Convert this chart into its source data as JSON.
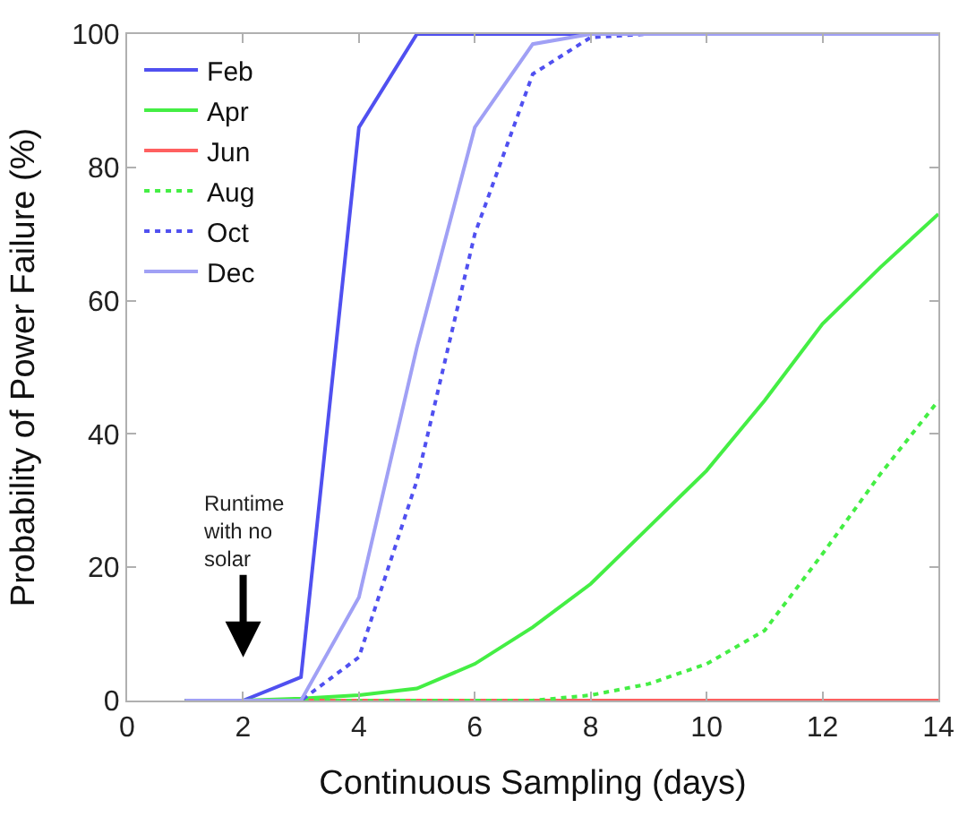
{
  "chart_data": {
    "type": "line",
    "xlabel": "Continuous Sampling (days)",
    "ylabel": "Probability of Power Failure (%)",
    "x": [
      1,
      2,
      3,
      4,
      5,
      6,
      7,
      8,
      9,
      10,
      11,
      12,
      13,
      14
    ],
    "xlim": [
      0,
      14
    ],
    "xticks": [
      0,
      2,
      4,
      6,
      8,
      10,
      12,
      14
    ],
    "ylim": [
      0,
      100
    ],
    "yticks": [
      0,
      20,
      40,
      60,
      80,
      100
    ],
    "legend": "top left",
    "marker": "none",
    "annotations": [
      "Runtime\nwith no\nsolar"
    ],
    "series": [
      {
        "name": "Feb",
        "color": "#5050f0",
        "line_style": "solid",
        "values": [
          0,
          0,
          3.5,
          86,
          100,
          100,
          100,
          100,
          100,
          100,
          100,
          100,
          100,
          100
        ]
      },
      {
        "name": "Apr",
        "color": "#44ee44",
        "line_style": "solid",
        "values": [
          0,
          0,
          0.3,
          0.8,
          1.8,
          5.5,
          11,
          17.5,
          26,
          34.5,
          45,
          56.5,
          65,
          73
        ]
      },
      {
        "name": "Jun",
        "color": "#ff6060",
        "line_style": "solid",
        "values": [
          0,
          0,
          0,
          0,
          0,
          0,
          0,
          0,
          0,
          0,
          0,
          0,
          0,
          0
        ]
      },
      {
        "name": "Aug",
        "color": "#44ee44",
        "line_style": "dotted",
        "values": [
          0,
          0,
          0,
          0,
          0,
          0,
          0,
          0.8,
          2.5,
          5.5,
          10.5,
          22,
          34,
          45
        ]
      },
      {
        "name": "Oct",
        "color": "#5050f0",
        "line_style": "dotted",
        "values": [
          0,
          0,
          0,
          6.5,
          33,
          70,
          94,
          99.5,
          100,
          100,
          100,
          100,
          100,
          100
        ]
      },
      {
        "name": "Dec",
        "color": "#a0a0f5",
        "line_style": "solid",
        "values": [
          0,
          0,
          0,
          15.5,
          53,
          86,
          98.5,
          100,
          100,
          100,
          100,
          100,
          100,
          100
        ]
      }
    ]
  }
}
